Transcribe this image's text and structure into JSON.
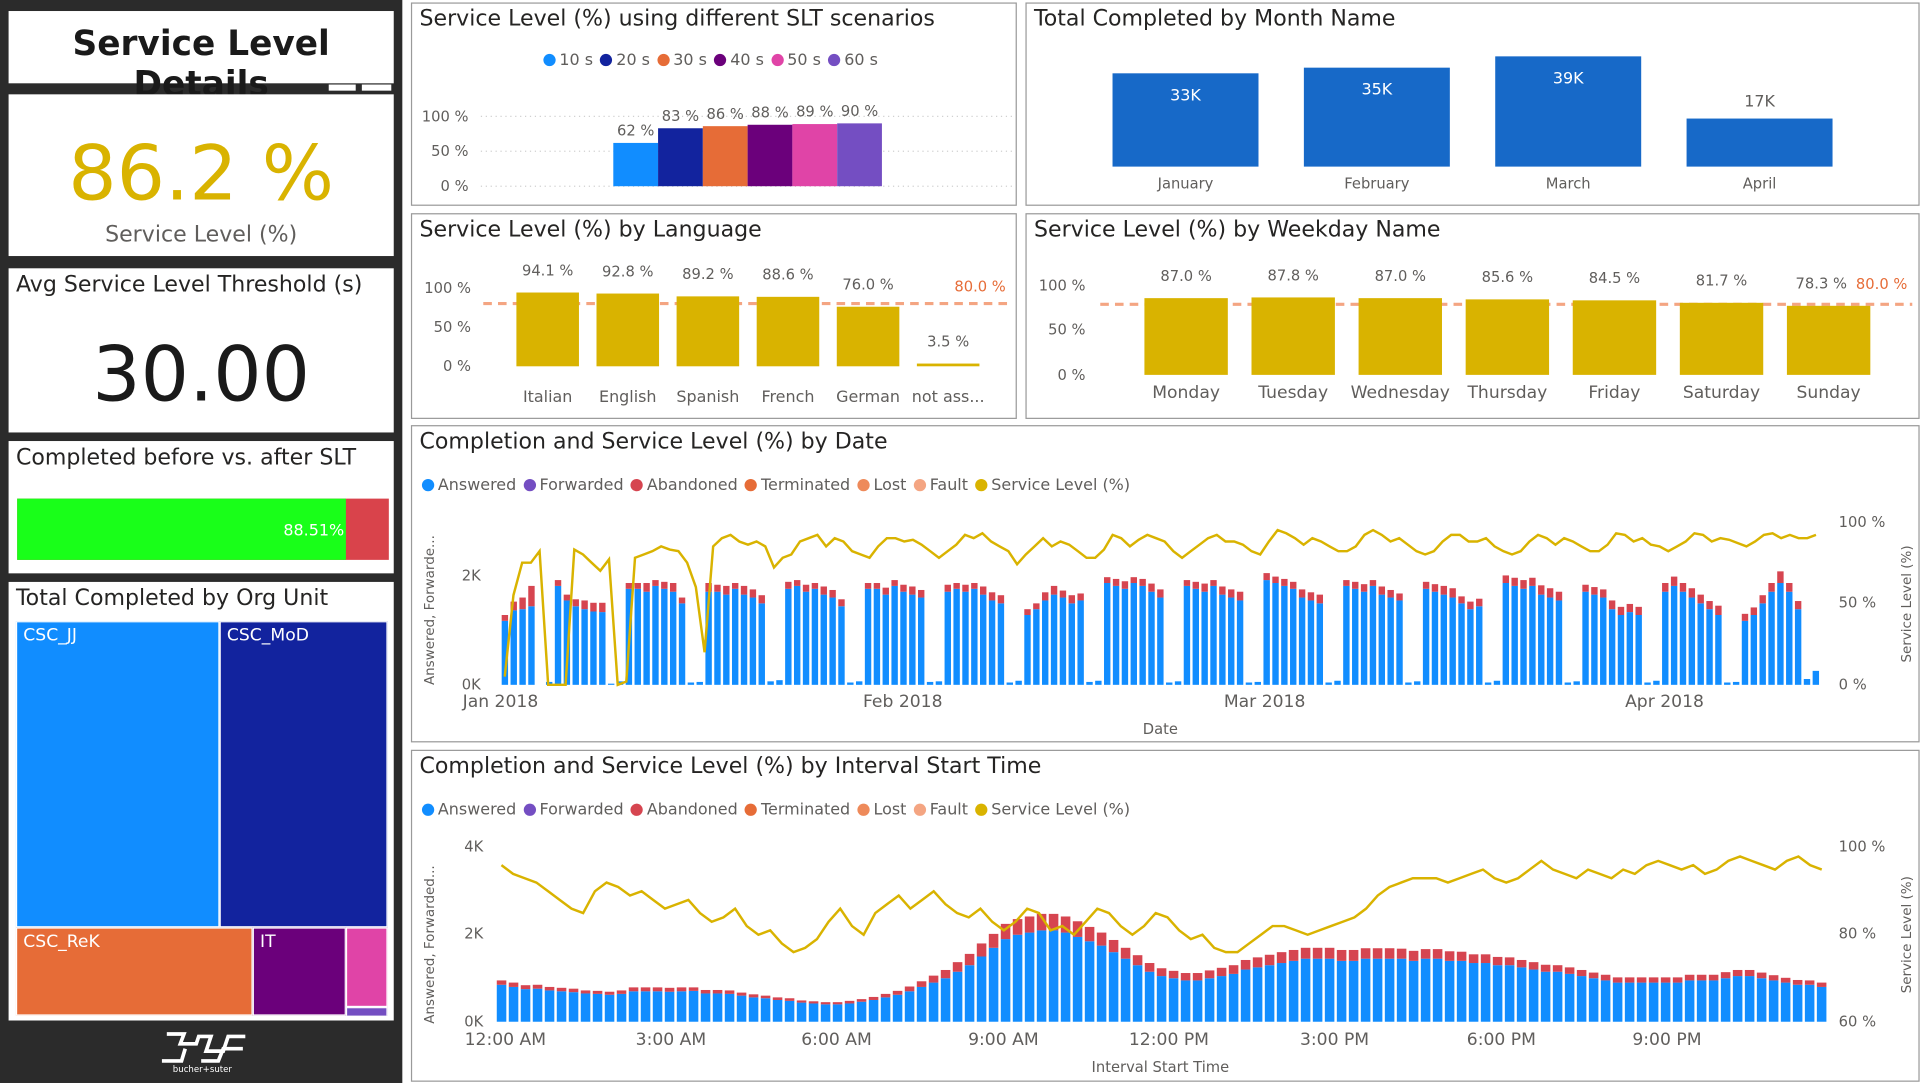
{
  "sidebar": {
    "title": "Service Level Details",
    "kpi_service_level": {
      "value": "86.2 %",
      "label": "Service Level (%)"
    },
    "kpi_threshold": {
      "title": "Avg Service Level Threshold (s)",
      "value": "30.00"
    },
    "completed_before_after": {
      "title": "Completed before vs. after SLT",
      "percent_label": "88.51%",
      "fraction": 0.8851
    },
    "org_unit": {
      "title": "Total Completed by Org Unit",
      "cells": [
        {
          "name": "CSC_JJ",
          "color": "#118dff"
        },
        {
          "name": "CSC_MoD",
          "color": "#12239e"
        },
        {
          "name": "CSC_ReK",
          "color": "#e66c37"
        },
        {
          "name": "IT",
          "color": "#6b007b"
        },
        {
          "name": "",
          "color": "#e044a7"
        },
        {
          "name": "",
          "color": "#744ec2"
        }
      ]
    },
    "logo_text": "bucher+suter"
  },
  "colors": {
    "accent_gold": "#d9b300",
    "blue": "#118dff",
    "dark_blue": "#12239e",
    "orange": "#e66c37",
    "purple": "#6b007b",
    "pink": "#e044a7",
    "violet": "#744ec2",
    "red": "#d64550",
    "threshold": "#f4a582",
    "kpi_green": "#19ff19",
    "kpi_red": "#d9434b"
  },
  "slt_chart": {
    "title": "Service Level (%) using different SLT scenarios",
    "chart_data": {
      "type": "bar",
      "legend": [
        {
          "label": "10 s",
          "color": "#118dff"
        },
        {
          "label": "20 s",
          "color": "#12239e"
        },
        {
          "label": "30 s",
          "color": "#e66c37"
        },
        {
          "label": "40 s",
          "color": "#6b007b"
        },
        {
          "label": "50 s",
          "color": "#e044a7"
        },
        {
          "label": "60 s",
          "color": "#744ec2"
        }
      ],
      "values": [
        62,
        83,
        86,
        88,
        89,
        90
      ],
      "data_labels": [
        "62 %",
        "83 %",
        "86 %",
        "88 %",
        "89 %",
        "90 %"
      ],
      "yticks": [
        "100 %",
        "50 %",
        "0 %"
      ],
      "ylim": [
        0,
        100
      ]
    }
  },
  "month_chart": {
    "title": "Total Completed by Month Name",
    "chart_data": {
      "type": "bar",
      "categories": [
        "January",
        "February",
        "March",
        "April"
      ],
      "values": [
        33,
        35,
        39,
        17
      ],
      "data_labels": [
        "33K",
        "35K",
        "39K",
        "17K"
      ],
      "units": "thousands"
    }
  },
  "language_chart": {
    "title": "Service Level (%) by Language",
    "chart_data": {
      "type": "bar",
      "categories": [
        "Italian",
        "English",
        "Spanish",
        "French",
        "German",
        "not ass..."
      ],
      "values": [
        94.1,
        92.8,
        89.2,
        88.6,
        76.0,
        3.5
      ],
      "data_labels": [
        "94.1 %",
        "92.8 %",
        "89.2 %",
        "88.6 %",
        "76.0 %",
        "3.5 %"
      ],
      "threshold": 80.0,
      "threshold_label": "80.0 %",
      "yticks": [
        "100 %",
        "50 %",
        "0 %"
      ],
      "ylim": [
        0,
        100
      ]
    }
  },
  "weekday_chart": {
    "title": "Service Level (%) by Weekday Name",
    "chart_data": {
      "type": "bar",
      "categories": [
        "Monday",
        "Tuesday",
        "Wednesday",
        "Thursday",
        "Friday",
        "Saturday",
        "Sunday"
      ],
      "values": [
        87.0,
        87.8,
        87.0,
        85.6,
        84.5,
        81.7,
        78.3
      ],
      "data_labels": [
        "87.0 %",
        "87.8 %",
        "87.0 %",
        "85.6 %",
        "84.5 %",
        "81.7 %",
        "78.3 %"
      ],
      "threshold": 80.0,
      "threshold_label": "80.0 %",
      "yticks": [
        "100 %",
        "50 %",
        "0 %"
      ],
      "ylim": [
        0,
        100
      ]
    }
  },
  "date_chart": {
    "title": "Completion and Service Level (%) by Date",
    "legend": [
      {
        "label": "Answered",
        "color": "#118dff"
      },
      {
        "label": "Forwarded",
        "color": "#744ec2"
      },
      {
        "label": "Abandoned",
        "color": "#d64550"
      },
      {
        "label": "Terminated",
        "color": "#e66c37"
      },
      {
        "label": "Lost",
        "color": "#ee8a5a"
      },
      {
        "label": "Fault",
        "color": "#f4a582"
      },
      {
        "label": "Service Level (%)",
        "color": "#d9b300"
      }
    ],
    "chart_data": {
      "type": "bar+line",
      "x_ticks": [
        "Jan 2018",
        "Feb 2018",
        "Mar 2018",
        "Apr 2018"
      ],
      "xlabel": "Date",
      "ylabel_left": "Answered, Forwarde...",
      "ylabel_right": "Service Level (%)",
      "yticks_left": [
        "2K",
        "0K"
      ],
      "yticks_right": [
        "100 %",
        "50 %",
        "0 %"
      ],
      "ylim_left": [
        0,
        2800
      ],
      "ylim_right": [
        0,
        100
      ],
      "answered": [
        1100,
        1280,
        1300,
        1350,
        0,
        50,
        1700,
        1450,
        1350,
        1300,
        1260,
        1250,
        20,
        60,
        1650,
        1650,
        1600,
        1700,
        1650,
        1600,
        1400,
        40,
        50,
        1600,
        1600,
        1550,
        1650,
        1550,
        1500,
        1400,
        60,
        80,
        1650,
        1700,
        1600,
        1650,
        1550,
        1500,
        1350,
        40,
        60,
        1650,
        1650,
        1550,
        1700,
        1600,
        1550,
        1500,
        50,
        60,
        1600,
        1650,
        1600,
        1650,
        1550,
        1450,
        1400,
        40,
        70,
        1200,
        1300,
        1450,
        1550,
        1500,
        1400,
        1450,
        50,
        70,
        1750,
        1700,
        1650,
        1750,
        1700,
        1600,
        1500,
        40,
        60,
        1700,
        1650,
        1600,
        1700,
        1550,
        1500,
        1450,
        40,
        50,
        1800,
        1750,
        1700,
        1650,
        1500,
        1450,
        1400,
        40,
        70,
        1700,
        1650,
        1600,
        1700,
        1550,
        1500,
        1450,
        40,
        60,
        1650,
        1600,
        1550,
        1500,
        1400,
        1300,
        1350,
        40,
        70,
        1750,
        1700,
        1650,
        1700,
        1550,
        1500,
        1450,
        40,
        60,
        1600,
        1550,
        1500,
        1300,
        1200,
        1250,
        1200,
        40,
        70,
        1600,
        1700,
        1600,
        1500,
        1400,
        1300,
        1200,
        40,
        50,
        1100,
        1200,
        1400,
        1600,
        1750,
        1600,
        1300,
        100,
        240
      ],
      "abandoned": [
        100,
        150,
        200,
        350,
        0,
        0,
        100,
        100,
        120,
        150,
        150,
        160,
        0,
        0,
        100,
        100,
        150,
        100,
        120,
        150,
        100,
        0,
        0,
        150,
        120,
        150,
        100,
        150,
        140,
        140,
        0,
        0,
        120,
        100,
        120,
        100,
        140,
        130,
        120,
        0,
        0,
        100,
        100,
        120,
        100,
        120,
        140,
        130,
        0,
        0,
        120,
        100,
        120,
        100,
        140,
        140,
        140,
        0,
        0,
        100,
        100,
        140,
        150,
        120,
        140,
        120,
        0,
        0,
        100,
        120,
        130,
        100,
        120,
        140,
        140,
        0,
        0,
        100,
        120,
        140,
        100,
        140,
        140,
        150,
        0,
        0,
        120,
        110,
        120,
        120,
        140,
        140,
        150,
        0,
        0,
        100,
        120,
        130,
        100,
        140,
        130,
        120,
        0,
        0,
        120,
        130,
        150,
        160,
        120,
        130,
        130,
        0,
        0,
        130,
        140,
        150,
        140,
        160,
        160,
        150,
        0,
        0,
        120,
        130,
        140,
        150,
        140,
        140,
        140,
        0,
        0,
        150,
        160,
        150,
        160,
        150,
        140,
        160,
        0,
        0,
        120,
        130,
        140,
        150,
        200,
        150,
        140,
        0,
        0
      ]
    },
    "service_level": [
      5,
      55,
      75,
      75,
      82,
      0,
      0,
      0,
      83,
      80,
      75,
      70,
      77,
      0,
      2,
      78,
      80,
      82,
      85,
      83,
      82,
      75,
      60,
      20,
      85,
      90,
      92,
      88,
      86,
      88,
      85,
      72,
      78,
      80,
      88,
      90,
      92,
      85,
      90,
      88,
      82,
      80,
      78,
      85,
      90,
      90,
      88,
      89,
      86,
      82,
      78,
      82,
      86,
      92,
      90,
      93,
      88,
      85,
      82,
      74,
      80,
      85,
      90,
      85,
      88,
      86,
      82,
      78,
      78,
      83,
      92,
      90,
      85,
      89,
      92,
      90,
      88,
      82,
      78,
      82,
      86,
      90,
      92,
      88,
      88,
      86,
      82,
      80,
      88,
      95,
      93,
      90,
      86,
      90,
      88,
      85,
      82,
      82,
      85,
      92,
      95,
      92,
      88,
      90,
      86,
      82,
      80,
      82,
      88,
      92,
      92,
      88,
      88,
      90,
      85,
      82,
      80,
      82,
      88,
      92,
      90,
      86,
      90,
      88,
      85,
      82,
      82,
      86,
      93,
      92,
      88,
      90,
      86,
      85,
      82,
      85,
      88,
      93,
      92,
      88,
      90,
      89,
      87,
      85,
      88,
      92,
      93,
      90,
      92,
      90,
      90,
      92
    ]
  },
  "interval_chart": {
    "title": "Completion and Service Level (%) by Interval Start Time",
    "legend": [
      {
        "label": "Answered",
        "color": "#118dff"
      },
      {
        "label": "Forwarded",
        "color": "#744ec2"
      },
      {
        "label": "Abandoned",
        "color": "#d64550"
      },
      {
        "label": "Terminated",
        "color": "#e66c37"
      },
      {
        "label": "Lost",
        "color": "#ee8a5a"
      },
      {
        "label": "Fault",
        "color": "#f4a582"
      },
      {
        "label": "Service Level (%)",
        "color": "#d9b300"
      }
    ],
    "chart_data": {
      "type": "bar+line",
      "x_ticks": [
        "12:00 AM",
        "3:00 AM",
        "6:00 AM",
        "9:00 AM",
        "12:00 PM",
        "3:00 PM",
        "6:00 PM",
        "9:00 PM"
      ],
      "xlabel": "Interval Start Time",
      "ylabel_left": "Answered, Forwarded...",
      "ylabel_right": "Service Level (%)",
      "yticks_left": [
        "4K",
        "2K",
        "0K"
      ],
      "yticks_right": [
        "100 %",
        "80 %",
        "60 %"
      ],
      "ylim_left": [
        0,
        4000
      ],
      "ylim_right": [
        60,
        100
      ],
      "answered": [
        850,
        800,
        750,
        760,
        720,
        700,
        680,
        650,
        640,
        620,
        640,
        700,
        700,
        700,
        690,
        700,
        710,
        650,
        650,
        640,
        600,
        560,
        540,
        500,
        480,
        440,
        420,
        400,
        400,
        420,
        460,
        500,
        560,
        620,
        700,
        800,
        900,
        1000,
        1150,
        1300,
        1500,
        1700,
        1900,
        2000,
        2050,
        2100,
        2100,
        2050,
        1950,
        1850,
        1750,
        1600,
        1450,
        1300,
        1150,
        1050,
        1000,
        950,
        950,
        1000,
        1050,
        1100,
        1200,
        1250,
        1300,
        1350,
        1400,
        1450,
        1450,
        1450,
        1400,
        1400,
        1450,
        1450,
        1450,
        1450,
        1400,
        1450,
        1450,
        1400,
        1400,
        1350,
        1350,
        1300,
        1300,
        1250,
        1200,
        1150,
        1150,
        1100,
        1050,
        1000,
        950,
        900,
        900,
        900,
        900,
        900,
        900,
        950,
        950,
        950,
        1000,
        1050,
        1050,
        1000,
        950,
        900,
        850,
        850,
        800
      ],
      "abandoned": [
        100,
        100,
        90,
        90,
        80,
        80,
        80,
        70,
        70,
        70,
        80,
        90,
        90,
        90,
        90,
        90,
        80,
        80,
        80,
        80,
        70,
        70,
        60,
        60,
        60,
        50,
        50,
        50,
        50,
        60,
        60,
        70,
        80,
        90,
        110,
        130,
        160,
        190,
        220,
        260,
        300,
        320,
        350,
        360,
        370,
        380,
        380,
        370,
        360,
        330,
        300,
        280,
        250,
        230,
        200,
        180,
        170,
        170,
        170,
        180,
        190,
        200,
        220,
        230,
        240,
        250,
        250,
        250,
        250,
        250,
        250,
        250,
        240,
        240,
        240,
        230,
        230,
        220,
        220,
        220,
        210,
        200,
        200,
        190,
        180,
        170,
        170,
        160,
        150,
        150,
        140,
        130,
        130,
        120,
        120,
        120,
        120,
        120,
        120,
        130,
        130,
        130,
        140,
        140,
        140,
        130,
        120,
        110,
        110,
        100,
        100
      ],
      "service_level": [
        96,
        94,
        93,
        92,
        90,
        88,
        86,
        85,
        90,
        92,
        91,
        89,
        90,
        88,
        86,
        87,
        88,
        85,
        83,
        84,
        86,
        82,
        80,
        81,
        78,
        76,
        77,
        79,
        83,
        86,
        82,
        80,
        85,
        87,
        89,
        86,
        88,
        90,
        87,
        85,
        84,
        86,
        83,
        81,
        83,
        86,
        85,
        81,
        82,
        80,
        83,
        86,
        85,
        82,
        80,
        82,
        85,
        84,
        81,
        79,
        80,
        77,
        76,
        76,
        78,
        80,
        82,
        82,
        81,
        80,
        81,
        82,
        83,
        84,
        86,
        89,
        91,
        92,
        93,
        93,
        93,
        92,
        93,
        94,
        95,
        93,
        92,
        93,
        95,
        97,
        95,
        94,
        93,
        95,
        94,
        93,
        95,
        94,
        96,
        97,
        96,
        95,
        96,
        94,
        95,
        97,
        98,
        97,
        96,
        95,
        97,
        98,
        96,
        95
      ],
      "series_names": [
        "Answered",
        "Abandoned",
        "Service Level (%)"
      ]
    }
  }
}
